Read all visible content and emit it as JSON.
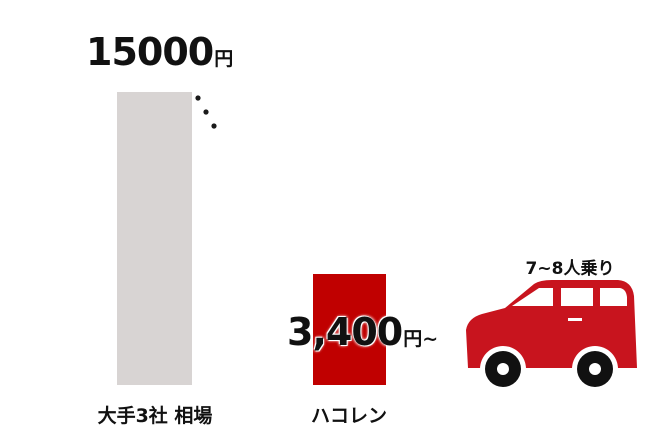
{
  "chart_data": {
    "type": "bar",
    "categories": [
      "大手3社 相場",
      "ハコレン"
    ],
    "values": [
      15000,
      3400
    ],
    "value_labels": [
      {
        "number": "15000",
        "unit": "円",
        "suffix": ""
      },
      {
        "number": "3,400",
        "unit": "円",
        "suffix": "~"
      }
    ],
    "ylim": [
      0,
      17000
    ],
    "grid": false,
    "legend": "none",
    "axis_break": true
  },
  "colors": {
    "bar_default": "#d8d4d3",
    "bar_highlight": "#c00000",
    "car_body": "#c8141e",
    "text": "#111111"
  },
  "car": {
    "icon": "minivan-icon",
    "label": "7~8人乗り"
  }
}
